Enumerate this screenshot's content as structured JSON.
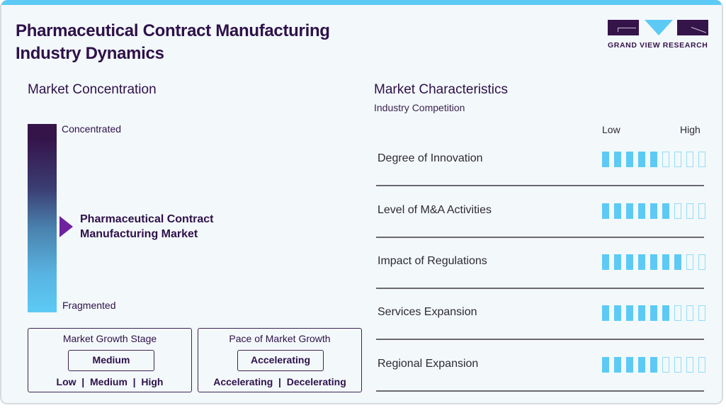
{
  "header": {
    "title_line1": "Pharmaceutical Contract Manufacturing",
    "title_line2": "Industry Dynamics",
    "logo_text": "GRAND VIEW RESEARCH"
  },
  "concentration": {
    "heading": "Market Concentration",
    "top_label": "Concentrated",
    "bottom_label": "Fragmented",
    "market_line1": "Pharmaceutical Contract",
    "market_line2": "Manufacturing Market",
    "gradient_colors": [
      "#35144a",
      "#5ccaf5"
    ],
    "pointer_color": "#6f219e"
  },
  "growth_stage": {
    "title": "Market Growth Stage",
    "selected": "Medium",
    "options": "Low  |  Medium  |  High"
  },
  "growth_pace": {
    "title": "Pace of Market Growth",
    "selected": "Accelerating",
    "options": "Accelerating  |  Decelerating"
  },
  "characteristics": {
    "heading": "Market Characteristics",
    "subheading": "Industry Competition",
    "scale_low": "Low",
    "scale_high": "High",
    "max_score": 9,
    "filled_color": "#5ccaf5",
    "rows": [
      {
        "label": "Degree of Innovation",
        "score": 5
      },
      {
        "label": "Level of M&A Activities",
        "score": 6
      },
      {
        "label": "Impact of Regulations",
        "score": 7
      },
      {
        "label": "Services Expansion",
        "score": 6
      },
      {
        "label": "Regional Expansion",
        "score": 5
      }
    ]
  },
  "chart_data": {
    "type": "table",
    "title": "Pharmaceutical Contract Manufacturing Industry Dynamics",
    "categories": [
      "Degree of Innovation",
      "Level of M&A Activities",
      "Impact of Regulations",
      "Services Expansion",
      "Regional Expansion"
    ],
    "values": [
      5,
      6,
      7,
      6,
      5
    ],
    "scale": [
      0,
      9
    ],
    "scale_labels": [
      "Low",
      "High"
    ],
    "market_concentration": "Mid-range between Concentrated and Fragmented",
    "market_growth_stage": "Medium",
    "pace_of_market_growth": "Accelerating"
  }
}
